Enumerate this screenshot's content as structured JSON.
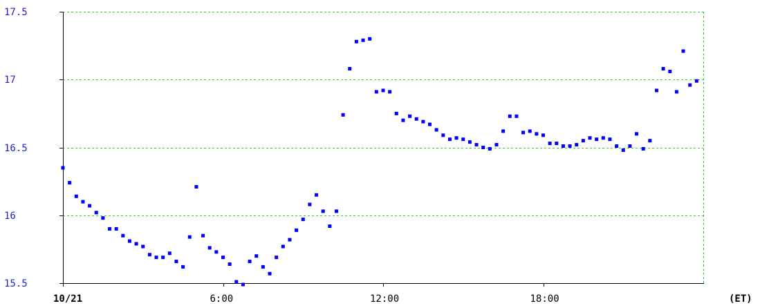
{
  "chart_data": {
    "type": "scatter",
    "x_unit_label": "(ET)",
    "x_tick_labels": [
      "10/21",
      "6:00",
      "12:00",
      "18:00"
    ],
    "x_tick_hours": [
      0,
      6,
      12,
      18
    ],
    "y_tick_labels": [
      "15.5",
      "16",
      "16.5",
      "17",
      "17.5"
    ],
    "y_tick_values": [
      15.5,
      16,
      16.5,
      17,
      17.5
    ],
    "xlim": [
      0,
      24
    ],
    "ylim": [
      15.5,
      17.5
    ],
    "grid": true,
    "colors": {
      "points": "#0000ff",
      "grid": "#33cc33",
      "axis": "#000000",
      "ytick_text": "#2222cc"
    },
    "x": [
      0.0,
      0.25,
      0.5,
      0.75,
      1.0,
      1.25,
      1.5,
      1.75,
      2.0,
      2.25,
      2.5,
      2.75,
      3.0,
      3.25,
      3.5,
      3.75,
      4.0,
      4.25,
      4.5,
      4.75,
      5.0,
      5.25,
      5.5,
      5.75,
      6.0,
      6.25,
      6.5,
      6.75,
      7.0,
      7.25,
      7.5,
      7.75,
      8.0,
      8.25,
      8.5,
      8.75,
      9.0,
      9.25,
      9.5,
      9.75,
      10.0,
      10.25,
      10.5,
      10.75,
      11.0,
      11.25,
      11.5,
      11.75,
      12.0,
      12.25,
      12.5,
      12.75,
      13.0,
      13.25,
      13.5,
      13.75,
      14.0,
      14.25,
      14.5,
      14.75,
      15.0,
      15.25,
      15.5,
      15.75,
      16.0,
      16.25,
      16.5,
      16.75,
      17.0,
      17.25,
      17.5,
      17.75,
      18.0,
      18.25,
      18.5,
      18.75,
      19.0,
      19.25,
      19.5,
      19.75,
      20.0,
      20.25,
      20.5,
      20.75,
      21.0,
      21.25,
      21.5,
      21.75,
      22.0,
      22.25,
      22.5,
      22.75,
      23.0,
      23.25,
      23.5,
      23.75
    ],
    "y": [
      16.35,
      16.24,
      16.14,
      16.1,
      16.07,
      16.02,
      15.98,
      15.9,
      15.9,
      15.85,
      15.81,
      15.79,
      15.77,
      15.71,
      15.69,
      15.69,
      15.72,
      15.66,
      15.62,
      15.84,
      16.21,
      15.85,
      15.76,
      15.73,
      15.69,
      15.64,
      15.51,
      15.49,
      15.66,
      15.7,
      15.62,
      15.57,
      15.69,
      15.77,
      15.82,
      15.89,
      15.97,
      16.08,
      16.15,
      16.03,
      15.92,
      16.03,
      16.74,
      17.08,
      17.28,
      17.29,
      17.3,
      16.91,
      16.92,
      16.91,
      16.75,
      16.7,
      16.73,
      16.71,
      16.69,
      16.67,
      16.63,
      16.59,
      16.56,
      16.57,
      16.56,
      16.54,
      16.52,
      16.5,
      16.49,
      16.52,
      16.62,
      16.73,
      16.73,
      16.61,
      16.62,
      16.6,
      16.59,
      16.53,
      16.53,
      16.51,
      16.51,
      16.52,
      16.55,
      16.57,
      16.56,
      16.57,
      16.56,
      16.51,
      16.48,
      16.51,
      16.6,
      16.49,
      16.55,
      16.92,
      17.08,
      17.06,
      16.91,
      17.21,
      16.96,
      16.99
    ]
  }
}
